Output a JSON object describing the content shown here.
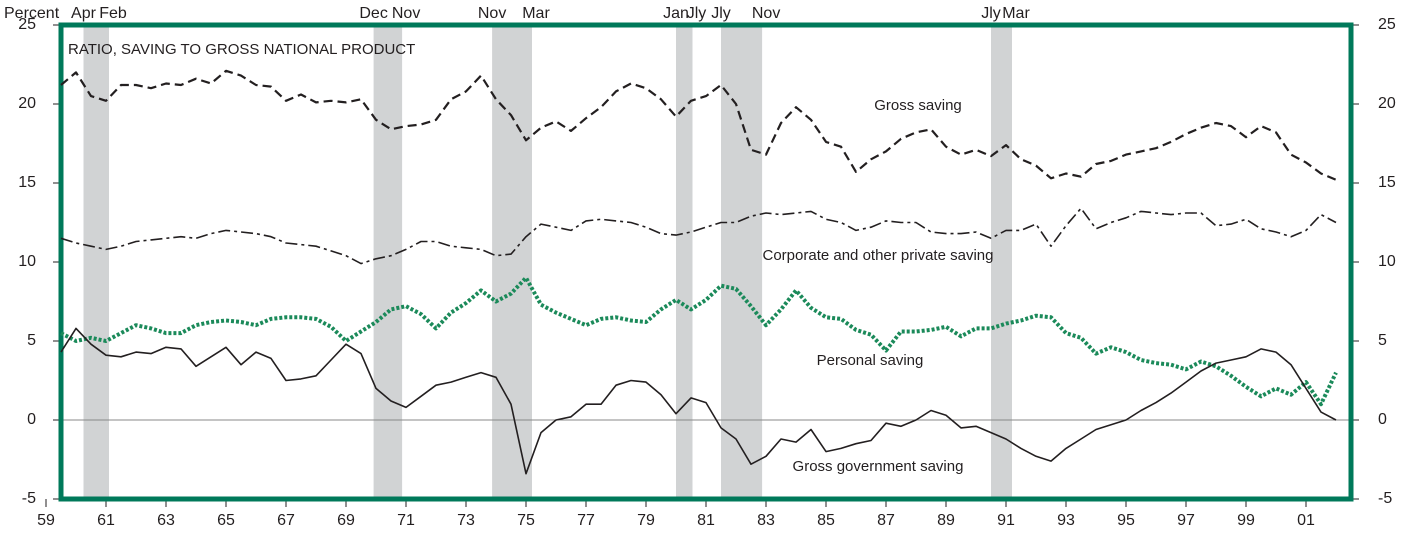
{
  "chart_data": {
    "type": "line",
    "title": "RATIO, SAVING TO GROSS NATIONAL PRODUCT",
    "y_label": "Percent",
    "frame_color": "#00795a",
    "zero_line": true,
    "xlim": [
      1959.5,
      2002.5
    ],
    "ylim": [
      -5,
      25
    ],
    "yticks": [
      -5,
      0,
      5,
      10,
      15,
      20,
      25
    ],
    "xticks": [
      {
        "value": 1959,
        "label": "59"
      },
      {
        "value": 1961,
        "label": "61"
      },
      {
        "value": 1963,
        "label": "63"
      },
      {
        "value": 1965,
        "label": "65"
      },
      {
        "value": 1967,
        "label": "67"
      },
      {
        "value": 1969,
        "label": "69"
      },
      {
        "value": 1971,
        "label": "71"
      },
      {
        "value": 1973,
        "label": "73"
      },
      {
        "value": 1975,
        "label": "75"
      },
      {
        "value": 1977,
        "label": "77"
      },
      {
        "value": 1979,
        "label": "79"
      },
      {
        "value": 1981,
        "label": "81"
      },
      {
        "value": 1983,
        "label": "83"
      },
      {
        "value": 1985,
        "label": "85"
      },
      {
        "value": 1987,
        "label": "87"
      },
      {
        "value": 1989,
        "label": "89"
      },
      {
        "value": 1991,
        "label": "91"
      },
      {
        "value": 1993,
        "label": "93"
      },
      {
        "value": 1995,
        "label": "95"
      },
      {
        "value": 1997,
        "label": "97"
      },
      {
        "value": 1999,
        "label": "99"
      },
      {
        "value": 2001,
        "label": "01"
      }
    ],
    "recession_color": "#d1d3d4",
    "recessions": [
      {
        "start": 1960.25,
        "end": 1961.1,
        "start_label": "Apr",
        "end_label": "Feb"
      },
      {
        "start": 1969.92,
        "end": 1970.87,
        "start_label": "Dec",
        "end_label": "Nov"
      },
      {
        "start": 1973.87,
        "end": 1975.2,
        "start_label": "Nov",
        "end_label": "Mar"
      },
      {
        "start": 1980.0,
        "end": 1980.55,
        "start_label": "Jan",
        "end_label": "Jly"
      },
      {
        "start": 1981.5,
        "end": 1982.87,
        "start_label": "Jly",
        "end_label": "Nov"
      },
      {
        "start": 1990.5,
        "end": 1991.2,
        "start_label": "Jly",
        "end_label": "Mar"
      }
    ],
    "x": [
      1959.5,
      1960,
      1960.5,
      1961,
      1961.5,
      1962,
      1962.5,
      1963,
      1963.5,
      1964,
      1964.5,
      1965,
      1965.5,
      1966,
      1966.5,
      1967,
      1967.5,
      1968,
      1968.5,
      1969,
      1969.5,
      1970,
      1970.5,
      1971,
      1971.5,
      1972,
      1972.5,
      1973,
      1973.5,
      1974,
      1974.5,
      1975,
      1975.5,
      1976,
      1976.5,
      1977,
      1977.5,
      1978,
      1978.5,
      1979,
      1979.5,
      1980,
      1980.5,
      1981,
      1981.5,
      1982,
      1982.5,
      1983,
      1983.5,
      1984,
      1984.5,
      1985,
      1985.5,
      1986,
      1986.5,
      1987,
      1987.5,
      1988,
      1988.5,
      1989,
      1989.5,
      1990,
      1990.5,
      1991,
      1991.5,
      1992,
      1992.5,
      1993,
      1993.5,
      1994,
      1994.5,
      1995,
      1995.5,
      1996,
      1996.5,
      1997,
      1997.5,
      1998,
      1998.5,
      1999,
      1999.5,
      2000,
      2000.5,
      2001,
      2001.5,
      2002
    ],
    "series": [
      {
        "name": "Gross saving",
        "color": "#231f20",
        "dash": "dashed",
        "values": [
          21.2,
          22,
          20.5,
          20.2,
          21.2,
          21.2,
          21,
          21.3,
          21.2,
          21.6,
          21.3,
          22.1,
          21.8,
          21.2,
          21.1,
          20.2,
          20.6,
          20.1,
          20.2,
          20.1,
          20.3,
          19,
          18.4,
          18.6,
          18.7,
          19,
          20.3,
          20.8,
          21.8,
          20.3,
          19.3,
          17.7,
          18.5,
          18.9,
          18.3,
          19.1,
          19.8,
          20.8,
          21.3,
          21,
          20.3,
          19.2,
          20.2,
          20.5,
          21.2,
          20,
          17.1,
          16.8,
          18.8,
          19.8,
          19,
          17.6,
          17.3,
          15.7,
          16.5,
          17,
          17.8,
          18.2,
          18.4,
          17.3,
          16.8,
          17.1,
          16.7,
          17.4,
          16.5,
          16.1,
          15.3,
          15.6,
          15.4,
          16.2,
          16.4,
          16.8,
          17,
          17.2,
          17.6,
          18.1,
          18.5,
          18.8,
          18.6,
          17.9,
          18.6,
          18.2,
          16.8,
          16.3,
          15.6,
          15.2
        ]
      },
      {
        "name": "Corporate and other private saving",
        "color": "#231f20",
        "dash": "dashdot",
        "values": [
          11.5,
          11.2,
          11,
          10.8,
          11,
          11.3,
          11.4,
          11.5,
          11.6,
          11.5,
          11.8,
          12,
          11.9,
          11.8,
          11.6,
          11.2,
          11.1,
          11,
          10.7,
          10.4,
          9.9,
          10.2,
          10.4,
          10.8,
          11.3,
          11.3,
          11,
          10.9,
          10.8,
          10.4,
          10.5,
          11.6,
          12.4,
          12.2,
          12,
          12.6,
          12.7,
          12.6,
          12.5,
          12.2,
          11.8,
          11.7,
          11.9,
          12.2,
          12.5,
          12.5,
          12.9,
          13.1,
          13,
          13.1,
          13.2,
          12.7,
          12.5,
          12,
          12.2,
          12.6,
          12.5,
          12.5,
          11.9,
          11.8,
          11.8,
          11.9,
          11.5,
          12,
          12,
          12.4,
          11,
          12.3,
          13.4,
          12.1,
          12.5,
          12.8,
          13.2,
          13.1,
          13,
          13.1,
          13.1,
          12.3,
          12.4,
          12.7,
          12.1,
          11.9,
          11.6,
          12,
          13,
          12.5
        ]
      },
      {
        "name": "Personal saving",
        "color": "#1b8a5a",
        "dash": "dotted",
        "values": [
          5.5,
          5,
          5.2,
          5,
          5.5,
          6,
          5.8,
          5.5,
          5.5,
          6,
          6.2,
          6.3,
          6.2,
          6,
          6.4,
          6.5,
          6.5,
          6.4,
          5.9,
          5,
          5.6,
          6.2,
          7,
          7.2,
          6.7,
          5.8,
          6.8,
          7.4,
          8.2,
          7.5,
          8,
          9,
          7.3,
          6.8,
          6.4,
          6,
          6.4,
          6.5,
          6.3,
          6.2,
          7,
          7.6,
          7,
          7.6,
          8.5,
          8.3,
          7.2,
          6,
          7,
          8.2,
          7.1,
          6.5,
          6.4,
          5.7,
          5.4,
          4.4,
          5.6,
          5.6,
          5.7,
          5.9,
          5.3,
          5.8,
          5.8,
          6.1,
          6.3,
          6.6,
          6.5,
          5.5,
          5.2,
          4.2,
          4.6,
          4.3,
          3.8,
          3.6,
          3.5,
          3.2,
          3.7,
          3.4,
          2.8,
          2.1,
          1.5,
          2,
          1.6,
          2.4,
          1,
          3
        ]
      },
      {
        "name": "Gross government saving",
        "color": "#231f20",
        "dash": "solid",
        "values": [
          4.3,
          5.8,
          4.8,
          4.1,
          4,
          4.3,
          4.2,
          4.6,
          4.5,
          3.4,
          4,
          4.6,
          3.5,
          4.3,
          3.9,
          2.5,
          2.6,
          2.8,
          3.8,
          4.8,
          4.2,
          2,
          1.2,
          0.8,
          1.5,
          2.2,
          2.4,
          2.7,
          3,
          2.7,
          1,
          -3.4,
          -0.8,
          0,
          0.2,
          1,
          1,
          2.2,
          2.5,
          2.4,
          1.6,
          0.4,
          1.4,
          1.1,
          -0.5,
          -1.2,
          -2.8,
          -2.3,
          -1.2,
          -1.4,
          -0.6,
          -2,
          -1.8,
          -1.5,
          -1.3,
          -0.2,
          -0.4,
          0,
          0.6,
          0.3,
          -0.5,
          -0.4,
          -0.8,
          -1.2,
          -1.8,
          -2.3,
          -2.6,
          -1.8,
          -1.2,
          -0.6,
          -0.3,
          0,
          0.6,
          1.1,
          1.7,
          2.4,
          3.1,
          3.6,
          3.8,
          4,
          4.5,
          4.3,
          3.5,
          2,
          0.5,
          0
        ]
      }
    ]
  }
}
